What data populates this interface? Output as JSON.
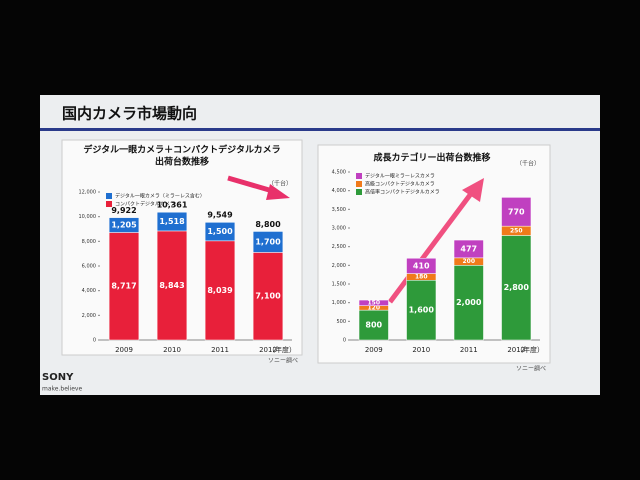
{
  "slide_title": "国内カメラ市場動向",
  "logo": "SONY",
  "tagline": "make.believe",
  "chart_data": [
    {
      "type": "bar",
      "stacked": true,
      "title": [
        "デジタル一眼カメラ＋コンパクトデジタルカメラ",
        "出荷台数推移"
      ],
      "y_unit": "（千台）",
      "x_unit": "（年度）",
      "source": "ソニー調べ",
      "categories": [
        "2009",
        "2010",
        "2011",
        "2012"
      ],
      "series": [
        {
          "name": "コンパクトデジタルカメラ",
          "color": "#e8203a",
          "values": [
            8717,
            8843,
            8039,
            7100
          ],
          "value_labels": [
            "8,717",
            "8,843",
            "8,039",
            "7,100"
          ]
        },
        {
          "name": "デジタル一眼カメラ（ミラーレス含む）",
          "color": "#1f6fd0",
          "values": [
            1205,
            1518,
            1500,
            1700
          ],
          "value_labels": [
            "1,205",
            "1,518",
            "1,500",
            "1,700"
          ]
        }
      ],
      "totals": [
        {
          "value": 9922,
          "label": "9,922"
        },
        {
          "value": 10361,
          "label": "10,361"
        },
        {
          "value": 9549,
          "label": "9,549"
        },
        {
          "value": 8800,
          "label": "8,800"
        }
      ],
      "ylim": [
        0,
        12000
      ],
      "yticks": [
        0,
        {
          "value": 2000,
          "label": "2,000"
        },
        {
          "value": 4000,
          "label": "4,000"
        },
        {
          "value": 6000,
          "label": "6,000"
        },
        {
          "value": 8000,
          "label": "8,000"
        },
        {
          "value": 10000,
          "label": "10,000"
        },
        {
          "value": 12000,
          "label": "12,000"
        }
      ]
    },
    {
      "type": "bar",
      "stacked": true,
      "title": [
        "成長カテゴリー出荷台数推移"
      ],
      "y_unit": "（千台）",
      "x_unit": "（年度）",
      "source": "ソニー調べ",
      "categories": [
        "2009",
        "2010",
        "2011",
        "2012"
      ],
      "series": [
        {
          "name": "高倍率コンパクトデジタルカメラ",
          "color": "#2e9a3a",
          "values": [
            800,
            1600,
            2000,
            2800
          ],
          "value_labels": [
            "800",
            "1,600",
            "2,000",
            "2,800"
          ]
        },
        {
          "name": "高級コンパクトデジタルカメラ",
          "color": "#f07a1a",
          "values": [
            120,
            180,
            200,
            250
          ]
        },
        {
          "name": "デジタル一眼ミラーレスカメラ",
          "color": "#c040c0",
          "values": [
            150,
            410,
            477,
            770
          ]
        }
      ],
      "ylim": [
        0,
        4500
      ],
      "yticks": [
        0,
        500,
        {
          "value": 1000,
          "label": "1,000"
        },
        {
          "value": 1500,
          "label": "1,500"
        },
        {
          "value": 2000,
          "label": "2,000"
        },
        {
          "value": 2500,
          "label": "2,500"
        },
        {
          "value": 3000,
          "label": "3,000"
        },
        {
          "value": 3500,
          "label": "3,500"
        },
        {
          "value": 4000,
          "label": "4,000"
        },
        {
          "value": 4500,
          "label": "4,500"
        }
      ]
    }
  ]
}
